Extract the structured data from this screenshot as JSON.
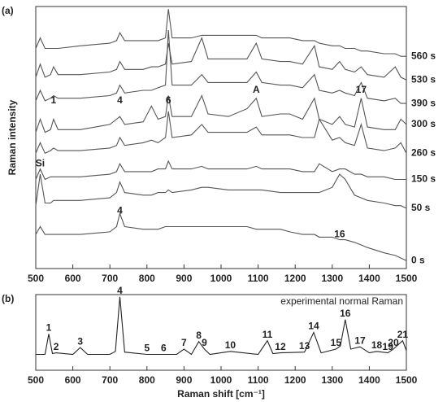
{
  "chart_data": [
    {
      "type": "line",
      "panel_label": "(a)",
      "ylabel": "Raman intensity",
      "xlim": [
        500,
        1500
      ],
      "xticks": [
        500,
        600,
        700,
        800,
        900,
        1000,
        1100,
        1200,
        1300,
        1400,
        1500
      ],
      "ylim": [
        0,
        100
      ],
      "x": [
        500,
        512,
        525,
        540,
        548,
        560,
        620,
        700,
        718,
        727,
        740,
        790,
        812,
        830,
        850,
        858,
        868,
        920,
        948,
        965,
        1020,
        1070,
        1095,
        1110,
        1160,
        1185,
        1220,
        1252,
        1265,
        1300,
        1320,
        1335,
        1360,
        1378,
        1395,
        1440,
        1470,
        1485,
        1500
      ],
      "series": [
        {
          "name": "560 s",
          "color": "#555555",
          "values": [
            84,
            88,
            84,
            84,
            84,
            84,
            85,
            86,
            87,
            90,
            87,
            87,
            87,
            87,
            88,
            99,
            88,
            88,
            89,
            89,
            89,
            89,
            89,
            88,
            88,
            88,
            87,
            87,
            86,
            85,
            85,
            84,
            84,
            83,
            83,
            82,
            82,
            81,
            81
          ]
        },
        {
          "name": "530 s",
          "color": "#555555",
          "values": [
            73,
            78,
            73,
            74,
            77,
            74,
            74,
            75,
            76,
            79,
            76,
            76,
            77,
            77,
            78,
            86,
            78,
            79,
            88,
            80,
            80,
            80,
            86,
            80,
            79,
            79,
            78,
            85,
            77,
            76,
            79,
            76,
            75,
            77,
            74,
            73,
            77,
            73,
            72
          ]
        },
        {
          "name": "390 s",
          "color": "#555555",
          "values": [
            64,
            68,
            64,
            65,
            66,
            65,
            65,
            66,
            67,
            70,
            67,
            68,
            68,
            69,
            70,
            91,
            70,
            70,
            74,
            71,
            71,
            71,
            75,
            71,
            70,
            70,
            69,
            74,
            68,
            67,
            68,
            67,
            66,
            71,
            65,
            64,
            65,
            63,
            63
          ]
        },
        {
          "name": "300 s",
          "color": "#555555",
          "values": [
            52,
            57,
            52,
            53,
            57,
            53,
            53,
            55,
            57,
            58,
            55,
            56,
            62,
            57,
            58,
            66,
            58,
            58,
            66,
            59,
            58,
            61,
            65,
            58,
            59,
            59,
            57,
            65,
            57,
            55,
            58,
            55,
            54,
            65,
            54,
            53,
            53,
            57,
            55
          ]
        },
        {
          "name": "260 s",
          "color": "#555555",
          "values": [
            44,
            48,
            44,
            45,
            46,
            45,
            45,
            46,
            47,
            50,
            47,
            48,
            49,
            48,
            50,
            60,
            50,
            51,
            55,
            52,
            52,
            52,
            54,
            51,
            51,
            51,
            50,
            50,
            57,
            49,
            50,
            48,
            47,
            55,
            46,
            45,
            46,
            48,
            44
          ]
        },
        {
          "name": "150 s",
          "color": "#555555",
          "values": [
            34,
            38,
            34,
            35,
            35,
            35,
            35,
            36,
            37,
            40,
            37,
            37,
            37,
            38,
            38,
            41,
            38,
            38,
            39,
            38,
            38,
            38,
            39,
            38,
            38,
            38,
            37,
            37,
            40,
            37,
            38,
            38,
            36,
            36,
            35,
            35,
            34,
            34,
            34
          ]
        },
        {
          "name": "50 s",
          "color": "#555555",
          "values": [
            24,
            36,
            25,
            25,
            26,
            26,
            26,
            27,
            29,
            33,
            29,
            28,
            28,
            29,
            29,
            30,
            29,
            30,
            31,
            31,
            30,
            30,
            30,
            30,
            29,
            29,
            29,
            29,
            29,
            31,
            36,
            34,
            28,
            27,
            26,
            25,
            24,
            24,
            23
          ]
        },
        {
          "name": "0 s",
          "color": "#555555",
          "values": [
            13,
            16,
            13,
            13,
            13,
            13,
            13,
            14,
            16,
            21,
            16,
            15,
            15,
            15,
            16,
            16,
            16,
            16,
            16,
            16,
            16,
            16,
            15,
            15,
            15,
            14,
            13,
            13,
            12,
            12,
            11,
            11,
            10,
            9,
            8,
            6,
            5,
            4,
            3
          ]
        }
      ],
      "annotations": [
        {
          "text": "1",
          "x": 548,
          "y": 64
        },
        {
          "text": "4",
          "x": 727,
          "y": 64
        },
        {
          "text": "6",
          "x": 858,
          "y": 64
        },
        {
          "text": "A",
          "x": 1095,
          "y": 68
        },
        {
          "text": "17",
          "x": 1378,
          "y": 68
        },
        {
          "text": "Si",
          "x": 512,
          "y": 40
        },
        {
          "text": "4",
          "x": 727,
          "y": 22
        },
        {
          "text": "16",
          "x": 1320,
          "y": 13
        }
      ]
    },
    {
      "type": "line",
      "panel_label": "(b)",
      "title": "experimental normal Raman",
      "xlabel": "Raman shift [cm⁻¹]",
      "xlim": [
        500,
        1500
      ],
      "xticks": [
        500,
        600,
        700,
        800,
        900,
        1000,
        1100,
        1200,
        1300,
        1400,
        1500
      ],
      "ylim": [
        0,
        100
      ],
      "x": [
        500,
        525,
        535,
        545,
        555,
        600,
        620,
        640,
        700,
        715,
        727,
        740,
        800,
        845,
        880,
        900,
        920,
        940,
        955,
        970,
        1025,
        1100,
        1125,
        1140,
        1160,
        1225,
        1250,
        1270,
        1310,
        1322,
        1335,
        1350,
        1375,
        1400,
        1420,
        1450,
        1465,
        1490,
        1500
      ],
      "series": [
        {
          "name": "experimental normal Raman",
          "color": "#222222",
          "values": [
            21,
            21,
            48,
            22,
            23,
            21,
            30,
            21,
            21,
            25,
            97,
            24,
            21,
            21,
            21,
            28,
            21,
            38,
            28,
            21,
            25,
            21,
            39,
            22,
            23,
            24,
            50,
            23,
            28,
            32,
            67,
            28,
            31,
            23,
            25,
            23,
            28,
            39,
            26
          ]
        }
      ],
      "peak_labels": [
        {
          "text": "1",
          "x": 535
        },
        {
          "text": "2",
          "x": 555
        },
        {
          "text": "3",
          "x": 620
        },
        {
          "text": "4",
          "x": 727
        },
        {
          "text": "5",
          "x": 800
        },
        {
          "text": "6",
          "x": 845
        },
        {
          "text": "7",
          "x": 900
        },
        {
          "text": "8",
          "x": 940
        },
        {
          "text": "9",
          "x": 955
        },
        {
          "text": "10",
          "x": 1025
        },
        {
          "text": "11",
          "x": 1125
        },
        {
          "text": "12",
          "x": 1160
        },
        {
          "text": "13",
          "x": 1225
        },
        {
          "text": "14",
          "x": 1250
        },
        {
          "text": "15",
          "x": 1310
        },
        {
          "text": "16",
          "x": 1335
        },
        {
          "text": "17",
          "x": 1375
        },
        {
          "text": "18",
          "x": 1420
        },
        {
          "text": "19",
          "x": 1450
        },
        {
          "text": "20",
          "x": 1465
        },
        {
          "text": "21",
          "x": 1490
        }
      ]
    }
  ]
}
